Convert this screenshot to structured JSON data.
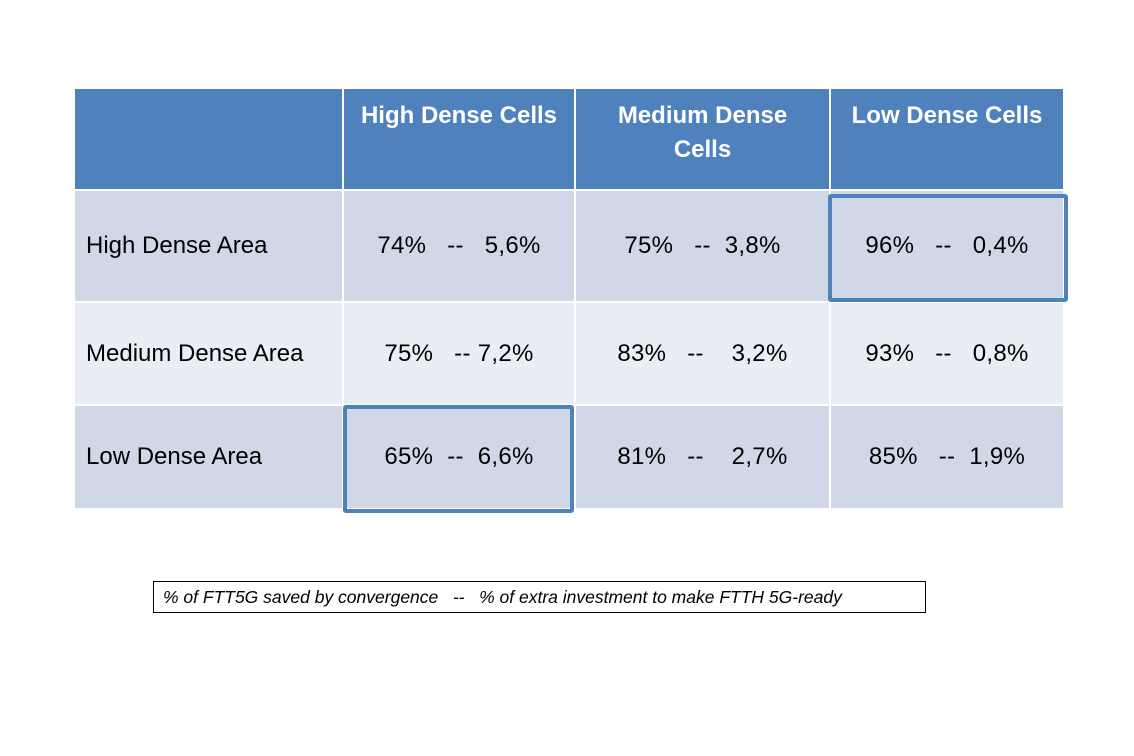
{
  "table": {
    "columns": [
      "",
      "High Dense Cells",
      "Medium Dense Cells",
      "Low Dense Cells"
    ],
    "rows": [
      {
        "label": "High Dense Area",
        "values": [
          "74%   --   5,6%",
          "75%   --  3,8%",
          "96%   --   0,4%"
        ]
      },
      {
        "label": "Medium Dense Area",
        "values": [
          "75%   -- 7,2%",
          "83%   --    3,2%",
          "93%   --   0,8%"
        ]
      },
      {
        "label": "Low Dense Area",
        "values": [
          "65%  --  6,6%",
          "81%   --    2,7%",
          "85%   --  1,9%"
        ]
      }
    ],
    "highlighted_cells": [
      "High Dense Area / Low Dense Cells",
      "Low Dense Area / High Dense Cells"
    ],
    "colors": {
      "header": "#4f81bd",
      "row_dark": "#d0d8e8",
      "row_light": "#e9edf4",
      "highlight_border": "#4f81bd"
    }
  },
  "legend": {
    "text": "% of FTT5G saved by convergence   --   % of extra investment to make FTTH 5G-ready"
  }
}
